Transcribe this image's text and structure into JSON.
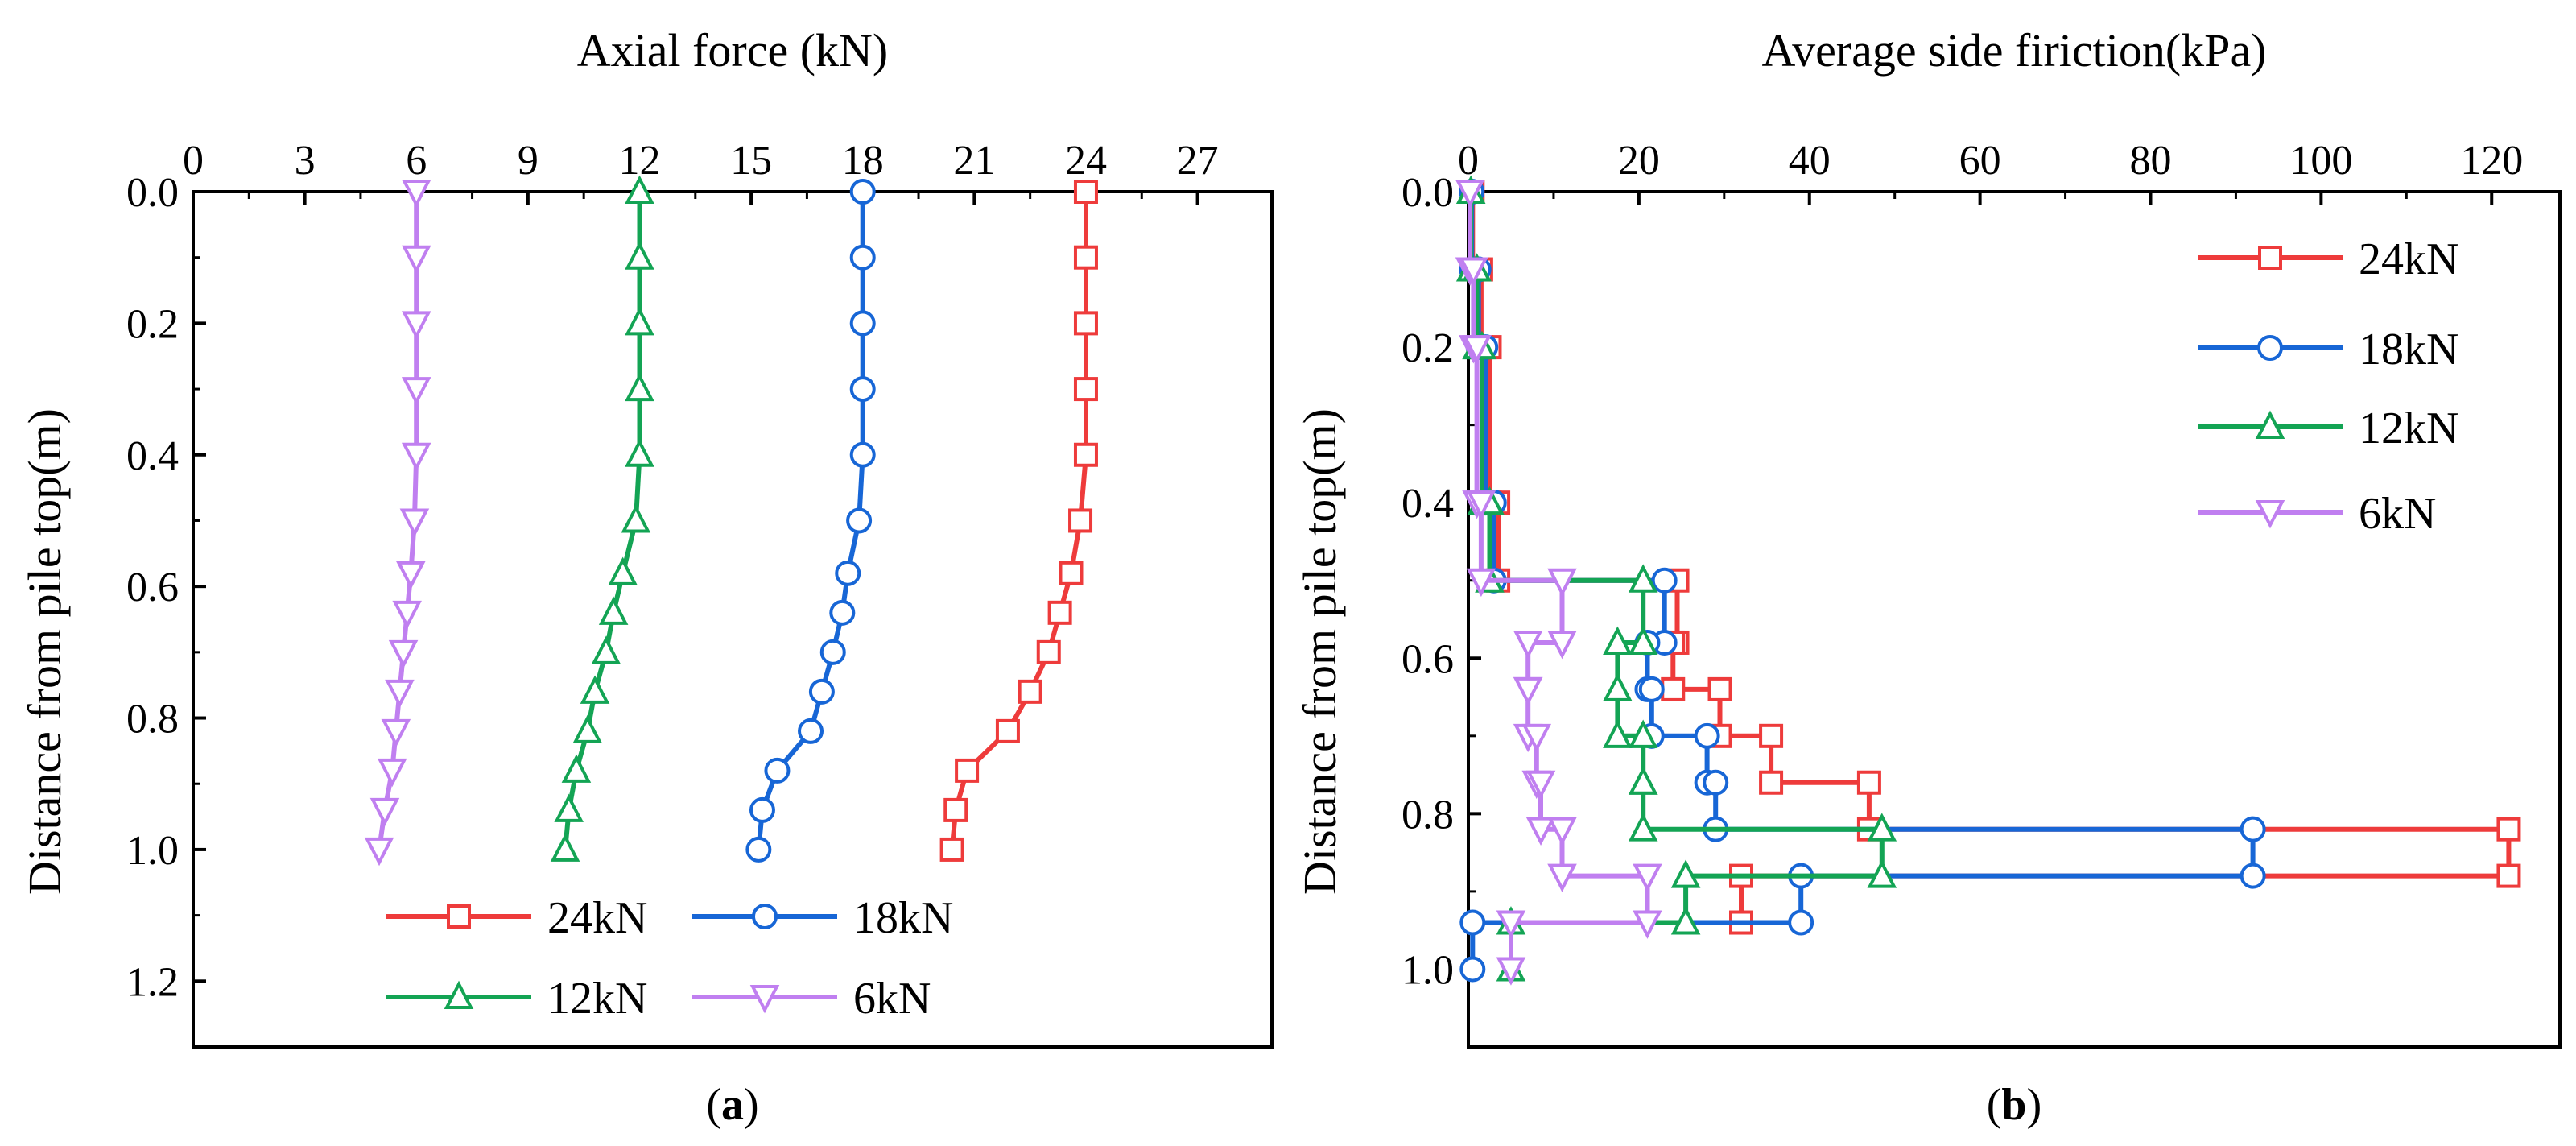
{
  "chart_data": [
    {
      "id": "a",
      "type": "line",
      "panel_label": "(a)",
      "title": "",
      "xlabel": "Axial force (kN)",
      "ylabel": "Distance from pile top(m)",
      "xlim": [
        0,
        29
      ],
      "ylim": [
        1.3,
        0
      ],
      "x_axis_position": "top",
      "y_inverted": true,
      "xticks": [
        0,
        3,
        6,
        9,
        12,
        15,
        18,
        21,
        24,
        27
      ],
      "yticks": [
        0.0,
        0.2,
        0.4,
        0.6,
        0.8,
        1.0,
        1.2
      ],
      "ytick_labels": [
        "0.0",
        "0.2",
        "0.4",
        "0.6",
        "0.8",
        "1.0",
        "1.2"
      ],
      "legend": {
        "placement": "bottom-center",
        "columns": 2
      },
      "series": [
        {
          "name": "24kN",
          "color": "#ee3b3b",
          "marker": "square",
          "x": [
            24.0,
            24.0,
            24.0,
            24.0,
            24.0,
            23.85,
            23.6,
            23.3,
            23.0,
            22.5,
            21.9,
            20.8,
            20.5,
            20.4
          ],
          "y": [
            0.0,
            0.1,
            0.2,
            0.3,
            0.4,
            0.5,
            0.58,
            0.64,
            0.7,
            0.76,
            0.82,
            0.88,
            0.94,
            1.0
          ]
        },
        {
          "name": "18kN",
          "color": "#1766d6",
          "marker": "circle",
          "x": [
            18.0,
            18.0,
            18.0,
            18.0,
            18.0,
            17.9,
            17.6,
            17.45,
            17.2,
            16.9,
            16.6,
            15.7,
            15.3,
            15.2
          ],
          "y": [
            0.0,
            0.1,
            0.2,
            0.3,
            0.4,
            0.5,
            0.58,
            0.64,
            0.7,
            0.76,
            0.82,
            0.88,
            0.94,
            1.0
          ]
        },
        {
          "name": "12kN",
          "color": "#13a454",
          "marker": "triangle-up",
          "x": [
            12.0,
            12.0,
            12.0,
            12.0,
            12.0,
            11.9,
            11.55,
            11.3,
            11.1,
            10.8,
            10.6,
            10.3,
            10.1,
            10.0
          ],
          "y": [
            0.0,
            0.1,
            0.2,
            0.3,
            0.4,
            0.5,
            0.58,
            0.64,
            0.7,
            0.76,
            0.82,
            0.88,
            0.94,
            1.0
          ]
        },
        {
          "name": "6kN",
          "color": "#c07ff0",
          "marker": "triangle-down",
          "x": [
            6.0,
            6.0,
            6.0,
            6.0,
            6.0,
            5.95,
            5.85,
            5.75,
            5.65,
            5.55,
            5.45,
            5.35,
            5.15,
            5.0
          ],
          "y": [
            0.0,
            0.1,
            0.2,
            0.3,
            0.4,
            0.5,
            0.58,
            0.64,
            0.7,
            0.76,
            0.82,
            0.88,
            0.94,
            1.0
          ]
        }
      ]
    },
    {
      "id": "b",
      "type": "line",
      "step": true,
      "panel_label": "(b)",
      "title": "",
      "xlabel": "Average side firiction(kPa)",
      "ylabel": "Distance from pile top(m)",
      "xlim": [
        0,
        128
      ],
      "ylim": [
        1.1,
        0
      ],
      "x_axis_position": "top",
      "y_inverted": true,
      "xticks": [
        0,
        20,
        40,
        60,
        80,
        100,
        120
      ],
      "yticks": [
        0.0,
        0.2,
        0.4,
        0.6,
        0.8,
        1.0
      ],
      "ytick_labels": [
        "0.0",
        "0.2",
        "0.4",
        "0.6",
        "0.8",
        "1.0"
      ],
      "legend": {
        "placement": "top-right",
        "columns": 1
      },
      "series": [
        {
          "name": "24kN",
          "color": "#ee3b3b",
          "marker": "square",
          "x": [
            0.5,
            0.5,
            1.5,
            1.5,
            2.5,
            2.5,
            3.5,
            3.5,
            24.5,
            24.5,
            24.0,
            24.0,
            29.5,
            29.5,
            35.5,
            35.5,
            47.0,
            47.0,
            122.0,
            122.0,
            32.0,
            32.0
          ],
          "y": [
            0.0,
            0.1,
            0.1,
            0.2,
            0.2,
            0.4,
            0.4,
            0.5,
            0.5,
            0.58,
            0.58,
            0.64,
            0.64,
            0.7,
            0.7,
            0.76,
            0.76,
            0.82,
            0.82,
            0.88,
            0.88,
            0.94
          ]
        },
        {
          "name": "18kN",
          "color": "#1766d6",
          "marker": "circle",
          "x": [
            0.4,
            0.4,
            1.2,
            1.2,
            2.0,
            2.0,
            3.0,
            3.0,
            23.0,
            23.0,
            21.0,
            21.0,
            21.5,
            21.5,
            28.0,
            28.0,
            29.0,
            29.0,
            92.0,
            92.0,
            39.0,
            39.0,
            0.5,
            0.5
          ],
          "y": [
            0.0,
            0.1,
            0.1,
            0.2,
            0.2,
            0.4,
            0.4,
            0.5,
            0.5,
            0.58,
            0.58,
            0.64,
            0.64,
            0.7,
            0.7,
            0.76,
            0.76,
            0.82,
            0.82,
            0.88,
            0.88,
            0.94,
            0.94,
            1.0
          ]
        },
        {
          "name": "12kN",
          "color": "#13a454",
          "marker": "triangle-up",
          "x": [
            0.3,
            0.3,
            1.0,
            1.0,
            1.6,
            1.6,
            2.5,
            2.5,
            20.5,
            20.5,
            17.5,
            17.5,
            17.5,
            17.5,
            20.5,
            20.5,
            20.5,
            20.5,
            48.5,
            48.5,
            25.5,
            25.5,
            5.0,
            5.0
          ],
          "y": [
            0.0,
            0.1,
            0.1,
            0.2,
            0.2,
            0.4,
            0.4,
            0.5,
            0.5,
            0.58,
            0.58,
            0.64,
            0.64,
            0.7,
            0.7,
            0.76,
            0.76,
            0.82,
            0.82,
            0.88,
            0.88,
            0.94,
            0.94,
            1.0
          ]
        },
        {
          "name": "6kN",
          "color": "#c07ff0",
          "marker": "triangle-down",
          "x": [
            0.2,
            0.2,
            0.6,
            0.6,
            1.0,
            1.0,
            1.5,
            1.5,
            11.0,
            11.0,
            7.0,
            7.0,
            7.0,
            7.0,
            8.0,
            8.0,
            8.5,
            8.5,
            11.0,
            11.0,
            21.0,
            21.0,
            5.0,
            5.0
          ],
          "y": [
            0.0,
            0.1,
            0.1,
            0.2,
            0.2,
            0.4,
            0.4,
            0.5,
            0.5,
            0.58,
            0.58,
            0.64,
            0.64,
            0.7,
            0.7,
            0.76,
            0.76,
            0.82,
            0.82,
            0.88,
            0.88,
            0.94,
            0.94,
            1.0
          ]
        }
      ]
    }
  ]
}
